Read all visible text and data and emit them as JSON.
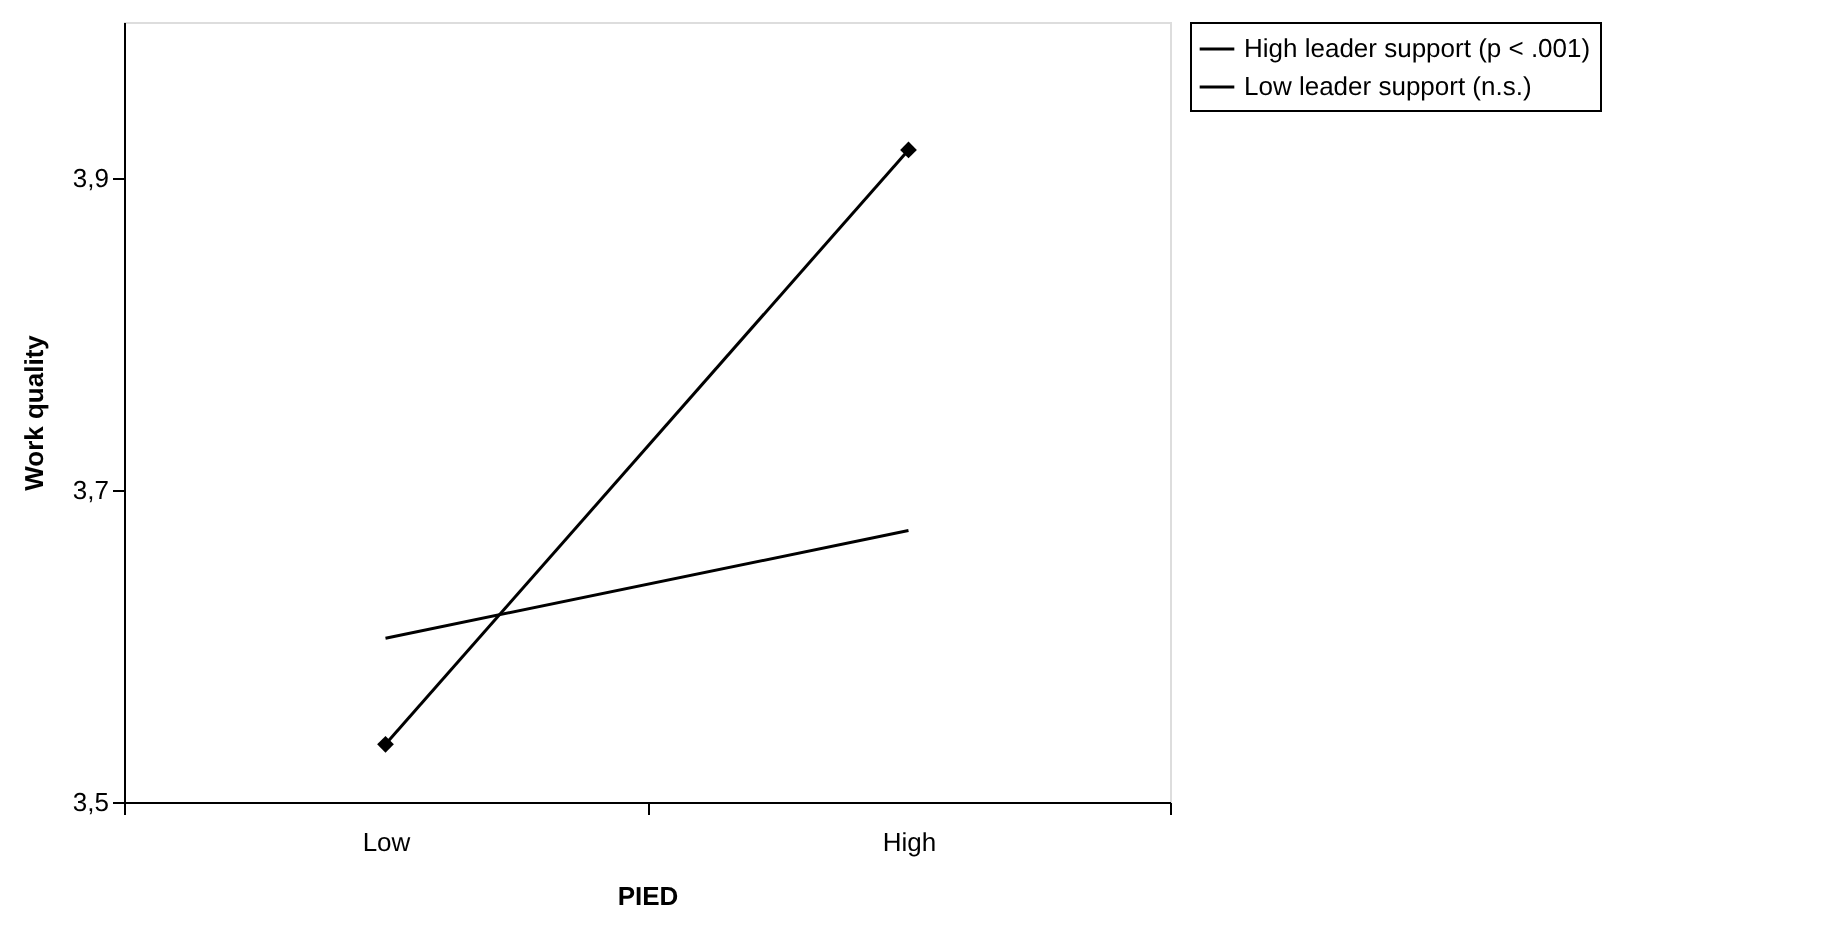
{
  "chart_data": {
    "type": "line",
    "xlabel": "PIED",
    "ylabel": "Work quality",
    "categories": [
      "Low",
      "High"
    ],
    "series": [
      {
        "name": "High leader support (p < .001)",
        "color": "#000000",
        "values": [
          3.537,
          3.918
        ],
        "marker": "diamond"
      },
      {
        "name": "Low leader support (n.s.)",
        "color": "#000000",
        "values": [
          3.605,
          3.674
        ],
        "marker": "none"
      }
    ],
    "ylim": [
      3.5,
      4.0
    ],
    "yticks": [
      {
        "value": 3.5,
        "label": "3,5"
      },
      {
        "value": 3.7,
        "label": "3,7"
      },
      {
        "value": 3.9,
        "label": "3,9"
      }
    ],
    "grid": false,
    "legend": "right",
    "line_style": "solid"
  }
}
